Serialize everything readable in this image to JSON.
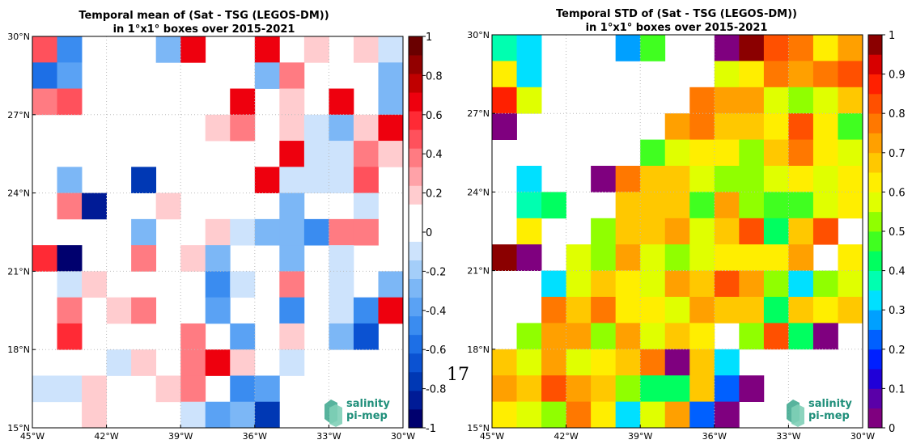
{
  "page_number": "17",
  "logo": {
    "line1": "salinity",
    "line2": "pi-mep"
  },
  "chart_data": [
    {
      "type": "heatmap",
      "title": "Temporal mean of (Sat - TSG (LEGOS-DM))",
      "subtitle": "in 1°x1° boxes over 2015-2021",
      "x_ticks": [
        "45°W",
        "42°W",
        "39°W",
        "36°W",
        "33°W",
        "30°W"
      ],
      "y_ticks": [
        "15°N",
        "18°N",
        "21°N",
        "24°N",
        "27°N",
        "30°N"
      ],
      "xlim": [
        -45,
        -30
      ],
      "ylim": [
        15,
        30
      ],
      "colorbar": {
        "min": -1,
        "max": 1,
        "levels": 20,
        "ticks": [
          "1",
          "0.8",
          "0.6",
          "0.4",
          "0.2",
          "0",
          "-0.2",
          "-0.4",
          "-0.6",
          "-0.8",
          "-1"
        ],
        "colors": [
          "#00006e",
          "#001b96",
          "#0038b4",
          "#0b52d2",
          "#1d6fe6",
          "#3a8cf0",
          "#5aa2f4",
          "#7cb7f6",
          "#a4cef9",
          "#cde3fc",
          "#ffffff",
          "#ffffff",
          "#ffcccf",
          "#ffa2a8",
          "#ff7b82",
          "#ff515c",
          "#ff2a35",
          "#ee000e",
          "#c00000",
          "#930000",
          "#6a0000"
        ]
      },
      "cell_order": "rows from 30°N (top) to 15°N; each row is 15 cells from 45°W to 30°W; null = no data",
      "grid": [
        [
          0.5,
          -0.5,
          null,
          null,
          null,
          -0.3,
          0.7,
          null,
          null,
          0.7,
          null,
          0.2,
          null,
          0.2,
          -0.1
        ],
        [
          -0.6,
          -0.4,
          null,
          null,
          null,
          null,
          null,
          null,
          null,
          -0.3,
          0.4,
          null,
          null,
          null,
          -0.3
        ],
        [
          0.4,
          0.5,
          null,
          null,
          null,
          null,
          null,
          null,
          0.7,
          null,
          0.2,
          null,
          0.7,
          null,
          -0.3
        ],
        [
          null,
          null,
          null,
          null,
          null,
          null,
          null,
          0.2,
          0.4,
          null,
          0.2,
          -0.1,
          -0.3,
          0.2,
          0.7
        ],
        [
          null,
          null,
          null,
          null,
          null,
          null,
          null,
          null,
          null,
          null,
          0.7,
          -0.1,
          -0.1,
          0.4,
          0.2
        ],
        [
          null,
          -0.3,
          null,
          null,
          -0.8,
          null,
          null,
          null,
          null,
          0.7,
          -0.1,
          -0.1,
          -0.1,
          0.5,
          null
        ],
        [
          null,
          0.4,
          -0.9,
          null,
          null,
          0.2,
          null,
          null,
          null,
          null,
          -0.3,
          null,
          null,
          -0.1,
          null
        ],
        [
          null,
          null,
          null,
          null,
          -0.3,
          null,
          null,
          0.2,
          -0.1,
          -0.3,
          -0.3,
          -0.5,
          0.4,
          0.4,
          null
        ],
        [
          0.6,
          -1.0,
          null,
          null,
          0.4,
          null,
          0.2,
          -0.3,
          null,
          null,
          -0.3,
          null,
          -0.1,
          null,
          null
        ],
        [
          null,
          -0.1,
          0.2,
          null,
          null,
          null,
          null,
          -0.5,
          -0.1,
          null,
          0.4,
          null,
          -0.1,
          null,
          -0.3
        ],
        [
          null,
          0.4,
          null,
          0.2,
          0.4,
          null,
          null,
          -0.4,
          null,
          null,
          -0.5,
          null,
          -0.1,
          -0.5,
          0.7
        ],
        [
          null,
          0.6,
          null,
          null,
          null,
          null,
          0.4,
          null,
          -0.4,
          null,
          0.2,
          null,
          -0.3,
          -0.7,
          null
        ],
        [
          null,
          null,
          null,
          -0.1,
          0.2,
          null,
          0.4,
          0.7,
          0.2,
          null,
          -0.1,
          null,
          null,
          null,
          null
        ],
        [
          -0.1,
          -0.1,
          0.2,
          null,
          null,
          0.2,
          0.4,
          null,
          -0.5,
          -0.4,
          null,
          null,
          null,
          null,
          null
        ],
        [
          null,
          null,
          0.2,
          null,
          null,
          null,
          -0.1,
          -0.4,
          -0.3,
          -0.8,
          null,
          null,
          null,
          null,
          null
        ]
      ]
    },
    {
      "type": "heatmap",
      "title": "Temporal STD of (Sat - TSG (LEGOS-DM))",
      "subtitle": "in 1°x1° boxes over 2015-2021",
      "x_ticks": [
        "45°W",
        "42°W",
        "39°W",
        "36°W",
        "33°W",
        "30°W"
      ],
      "y_ticks": [
        "15°N",
        "18°N",
        "21°N",
        "24°N",
        "27°N",
        "30°N"
      ],
      "xlim": [
        -45,
        -30
      ],
      "ylim": [
        15,
        30
      ],
      "colorbar": {
        "min": 0,
        "max": 1,
        "levels": 20,
        "ticks": [
          "1",
          "0.9",
          "0.8",
          "0.7",
          "0.6",
          "0.5",
          "0.4",
          "0.3",
          "0.2",
          "0.1",
          "0"
        ],
        "colors": [
          "#7f007f",
          "#5a00a8",
          "#2000d8",
          "#0020ff",
          "#0060ff",
          "#00a0ff",
          "#00e0ff",
          "#00ffb0",
          "#00ff60",
          "#40ff20",
          "#90ff00",
          "#e0ff00",
          "#ffee00",
          "#ffc800",
          "#ffa000",
          "#ff7800",
          "#ff5000",
          "#ff2000",
          "#d80000",
          "#8b0000"
        ]
      },
      "cell_order": "rows from 30°N (top) to 15°N; each row is 15 cells from 45°W to 30°W; null = no data",
      "grid": [
        [
          0.37,
          0.32,
          null,
          null,
          null,
          0.27,
          0.48,
          null,
          null,
          0.02,
          0.97,
          0.83,
          0.77,
          0.62,
          0.72
        ],
        [
          0.62,
          0.32,
          null,
          null,
          null,
          null,
          null,
          null,
          null,
          0.57,
          0.62,
          0.77,
          0.72,
          0.77,
          0.82
        ],
        [
          0.87,
          0.57,
          null,
          null,
          null,
          null,
          null,
          null,
          0.77,
          0.72,
          0.72,
          0.57,
          0.52,
          0.57,
          0.67
        ],
        [
          0.02,
          null,
          null,
          null,
          null,
          null,
          null,
          0.72,
          0.77,
          0.67,
          0.67,
          0.62,
          0.82,
          0.62,
          0.47
        ],
        [
          null,
          null,
          null,
          null,
          null,
          null,
          0.47,
          0.57,
          0.62,
          0.62,
          0.52,
          0.67,
          0.77,
          0.62,
          0.57
        ],
        [
          null,
          0.32,
          null,
          null,
          0.02,
          0.77,
          0.67,
          0.67,
          0.57,
          0.52,
          0.52,
          0.57,
          0.62,
          0.57,
          0.62
        ],
        [
          null,
          0.37,
          0.42,
          null,
          null,
          0.67,
          0.67,
          0.67,
          0.47,
          0.72,
          0.52,
          0.47,
          0.47,
          0.57,
          0.62
        ],
        [
          null,
          0.62,
          null,
          null,
          0.52,
          0.67,
          0.67,
          0.72,
          0.57,
          0.67,
          0.82,
          0.42,
          0.67,
          0.82,
          null
        ],
        [
          0.95,
          0.02,
          null,
          0.57,
          0.52,
          0.72,
          0.57,
          0.52,
          0.57,
          0.62,
          0.62,
          0.62,
          0.72,
          null,
          0.62
        ],
        [
          null,
          null,
          0.32,
          0.57,
          0.67,
          0.62,
          0.57,
          0.72,
          0.67,
          0.82,
          0.72,
          0.52,
          0.32,
          0.52,
          0.57
        ],
        [
          null,
          null,
          0.77,
          0.67,
          0.77,
          0.62,
          0.62,
          0.57,
          0.72,
          0.67,
          0.67,
          0.42,
          0.67,
          0.62,
          0.67
        ],
        [
          null,
          0.52,
          0.72,
          0.72,
          0.52,
          0.72,
          0.57,
          0.67,
          0.62,
          null,
          0.52,
          0.82,
          0.42,
          0.02,
          null
        ],
        [
          0.67,
          0.57,
          0.72,
          0.57,
          0.62,
          0.67,
          0.77,
          0.02,
          0.67,
          0.32,
          null,
          null,
          null,
          null,
          null
        ],
        [
          0.72,
          0.67,
          0.82,
          0.72,
          0.67,
          0.52,
          0.42,
          0.42,
          0.67,
          0.22,
          0.02,
          null,
          null,
          null,
          null
        ],
        [
          0.62,
          0.57,
          0.52,
          0.77,
          0.62,
          0.32,
          0.57,
          0.72,
          0.22,
          0.02,
          null,
          null,
          null,
          null,
          null
        ]
      ]
    }
  ]
}
